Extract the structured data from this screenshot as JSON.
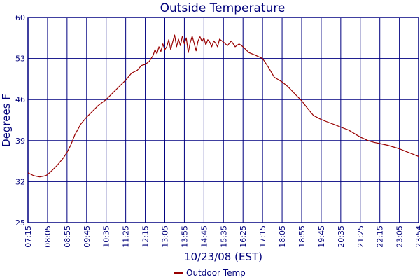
{
  "chart_data": {
    "type": "line",
    "title": "Outside Temperature",
    "xlabel": "10/23/08 (EST)",
    "ylabel": "Degrees F",
    "ylim": [
      25,
      60
    ],
    "yticks": [
      25,
      32,
      39,
      46,
      53,
      60
    ],
    "xlim": [
      "07:15",
      "23:54"
    ],
    "categories": [
      "07:15",
      "08:05",
      "08:55",
      "09:45",
      "10:35",
      "11:25",
      "12:15",
      "13:05",
      "13:55",
      "14:45",
      "15:35",
      "16:25",
      "17:15",
      "18:05",
      "18:55",
      "19:45",
      "20:35",
      "21:25",
      "22:15",
      "23:05",
      "23:54"
    ],
    "grid": true,
    "legend_position": "bottom-center",
    "colors": {
      "series": "#990000",
      "grid": "#000080",
      "axis": "#000080",
      "text": "#00007a"
    },
    "series": [
      {
        "name": "Outdoor Temp",
        "points": [
          [
            "07:15",
            33.5
          ],
          [
            "07:30",
            33.0
          ],
          [
            "07:45",
            32.8
          ],
          [
            "08:00",
            33.0
          ],
          [
            "08:05",
            33.2
          ],
          [
            "08:15",
            33.8
          ],
          [
            "08:30",
            34.8
          ],
          [
            "08:45",
            36.0
          ],
          [
            "08:55",
            37.0
          ],
          [
            "09:05",
            38.3
          ],
          [
            "09:15",
            40.0
          ],
          [
            "09:30",
            41.8
          ],
          [
            "09:45",
            43.0
          ],
          [
            "10:00",
            44.0
          ],
          [
            "10:15",
            45.0
          ],
          [
            "10:35",
            46.0
          ],
          [
            "10:50",
            47.0
          ],
          [
            "11:05",
            48.0
          ],
          [
            "11:25",
            49.3
          ],
          [
            "11:40",
            50.5
          ],
          [
            "11:55",
            51.0
          ],
          [
            "12:05",
            51.8
          ],
          [
            "12:15",
            52.0
          ],
          [
            "12:25",
            52.5
          ],
          [
            "12:35",
            53.5
          ],
          [
            "12:40",
            54.5
          ],
          [
            "12:45",
            53.8
          ],
          [
            "12:50",
            55.0
          ],
          [
            "12:55",
            54.2
          ],
          [
            "13:00",
            55.5
          ],
          [
            "13:05",
            54.5
          ],
          [
            "13:10",
            55.0
          ],
          [
            "13:15",
            56.2
          ],
          [
            "13:20",
            54.5
          ],
          [
            "13:25",
            55.8
          ],
          [
            "13:30",
            57.0
          ],
          [
            "13:35",
            55.0
          ],
          [
            "13:40",
            56.3
          ],
          [
            "13:45",
            55.2
          ],
          [
            "13:50",
            56.8
          ],
          [
            "13:55",
            55.5
          ],
          [
            "14:00",
            56.5
          ],
          [
            "14:05",
            54.0
          ],
          [
            "14:10",
            55.7
          ],
          [
            "14:15",
            56.8
          ],
          [
            "14:20",
            55.6
          ],
          [
            "14:25",
            54.3
          ],
          [
            "14:30",
            56.0
          ],
          [
            "14:35",
            56.7
          ],
          [
            "14:40",
            55.9
          ],
          [
            "14:45",
            56.5
          ],
          [
            "14:50",
            55.3
          ],
          [
            "14:55",
            56.2
          ],
          [
            "15:00",
            55.8
          ],
          [
            "15:05",
            55.0
          ],
          [
            "15:10",
            56.0
          ],
          [
            "15:15",
            55.6
          ],
          [
            "15:20",
            55.0
          ],
          [
            "15:25",
            56.3
          ],
          [
            "15:35",
            55.8
          ],
          [
            "15:45",
            55.2
          ],
          [
            "15:55",
            56.0
          ],
          [
            "16:05",
            55.0
          ],
          [
            "16:15",
            55.5
          ],
          [
            "16:25",
            55.0
          ],
          [
            "16:40",
            54.0
          ],
          [
            "16:55",
            53.6
          ],
          [
            "17:15",
            53.0
          ],
          [
            "17:30",
            51.5
          ],
          [
            "17:45",
            49.8
          ],
          [
            "18:05",
            49.0
          ],
          [
            "18:20",
            48.2
          ],
          [
            "18:40",
            46.8
          ],
          [
            "18:55",
            45.8
          ],
          [
            "19:10",
            44.5
          ],
          [
            "19:25",
            43.3
          ],
          [
            "19:45",
            42.6
          ],
          [
            "20:00",
            42.2
          ],
          [
            "20:20",
            41.7
          ],
          [
            "20:35",
            41.3
          ],
          [
            "20:55",
            40.8
          ],
          [
            "21:10",
            40.2
          ],
          [
            "21:25",
            39.6
          ],
          [
            "21:45",
            39.0
          ],
          [
            "22:00",
            38.7
          ],
          [
            "22:15",
            38.5
          ],
          [
            "22:35",
            38.2
          ],
          [
            "22:50",
            37.9
          ],
          [
            "23:05",
            37.6
          ],
          [
            "23:20",
            37.2
          ],
          [
            "23:35",
            36.8
          ],
          [
            "23:54",
            36.3
          ]
        ]
      }
    ]
  }
}
